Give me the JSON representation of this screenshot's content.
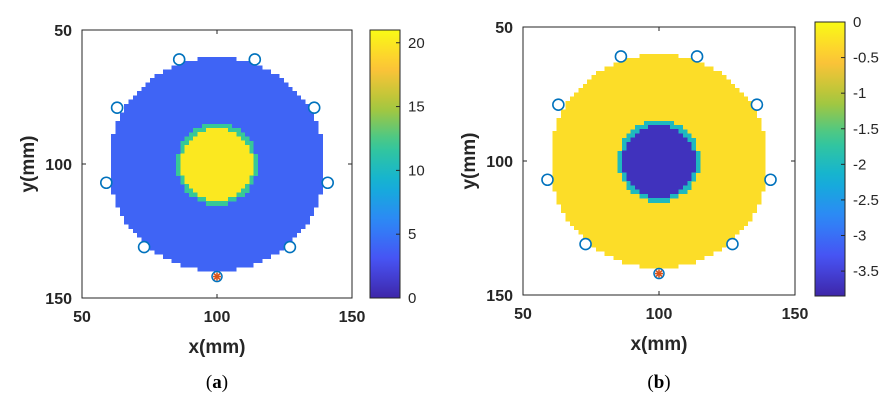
{
  "chart_data": [
    {
      "type": "heatmap",
      "panel_label": "a",
      "title": "",
      "xlabel": "x(mm)",
      "ylabel": "y(mm)",
      "xlim": [
        50,
        150
      ],
      "ylim": [
        50,
        150
      ],
      "y_reversed": true,
      "x_ticks": [
        "50",
        "100",
        "150"
      ],
      "y_ticks": [
        "50",
        "100",
        "150"
      ],
      "grid": false,
      "colormap": "parula",
      "colorbar": {
        "ticks": [
          "0",
          "5",
          "10",
          "15",
          "20"
        ],
        "tick_values": [
          0,
          5,
          10,
          15,
          20
        ],
        "range": [
          0,
          21
        ]
      },
      "regions": [
        {
          "shape": "disk",
          "center": [
            100,
            100
          ],
          "radius": 40,
          "value": 4
        },
        {
          "shape": "disk",
          "center": [
            100,
            100
          ],
          "radius": 15,
          "value": 12
        },
        {
          "shape": "disk",
          "center": [
            100,
            100
          ],
          "radius": 13.5,
          "value": 20
        }
      ],
      "background_value": null,
      "sensors": [
        {
          "x": 86,
          "y": 61
        },
        {
          "x": 114,
          "y": 61
        },
        {
          "x": 136,
          "y": 79
        },
        {
          "x": 141,
          "y": 107
        },
        {
          "x": 127,
          "y": 131
        },
        {
          "x": 73,
          "y": 131
        },
        {
          "x": 59,
          "y": 107
        },
        {
          "x": 63,
          "y": 79
        }
      ],
      "source": {
        "x": 100,
        "y": 142
      },
      "colors": {
        "sensor": "#0072BD",
        "source": "#D95319"
      }
    },
    {
      "type": "heatmap",
      "panel_label": "b",
      "title": "",
      "xlabel": "x(mm)",
      "ylabel": "y(mm)",
      "xlim": [
        50,
        150
      ],
      "ylim": [
        50,
        150
      ],
      "y_reversed": true,
      "x_ticks": [
        "50",
        "100",
        "150"
      ],
      "y_ticks": [
        "50",
        "100",
        "150"
      ],
      "grid": false,
      "colormap": "parula",
      "colorbar": {
        "ticks": [
          "0",
          "-0.5",
          "-1",
          "-1.5",
          "-2",
          "-2.5",
          "-3",
          "-3.5"
        ],
        "tick_values": [
          0,
          -0.5,
          -1,
          -1.5,
          -2,
          -2.5,
          -3,
          -3.5
        ],
        "range": [
          -3.85,
          0
        ]
      },
      "regions": [
        {
          "shape": "disk",
          "center": [
            100,
            100
          ],
          "radius": 40,
          "value": -0.3
        },
        {
          "shape": "disk",
          "center": [
            100,
            100
          ],
          "radius": 15,
          "value": -2.0
        },
        {
          "shape": "disk",
          "center": [
            100,
            100
          ],
          "radius": 13.5,
          "value": -3.7
        }
      ],
      "background_value": null,
      "sensors": [
        {
          "x": 86,
          "y": 61
        },
        {
          "x": 114,
          "y": 61
        },
        {
          "x": 136,
          "y": 79
        },
        {
          "x": 141,
          "y": 107
        },
        {
          "x": 127,
          "y": 131
        },
        {
          "x": 73,
          "y": 131
        },
        {
          "x": 59,
          "y": 107
        },
        {
          "x": 63,
          "y": 79
        }
      ],
      "source": {
        "x": 100,
        "y": 142
      },
      "colors": {
        "sensor": "#0072BD",
        "source": "#D95319"
      }
    }
  ]
}
